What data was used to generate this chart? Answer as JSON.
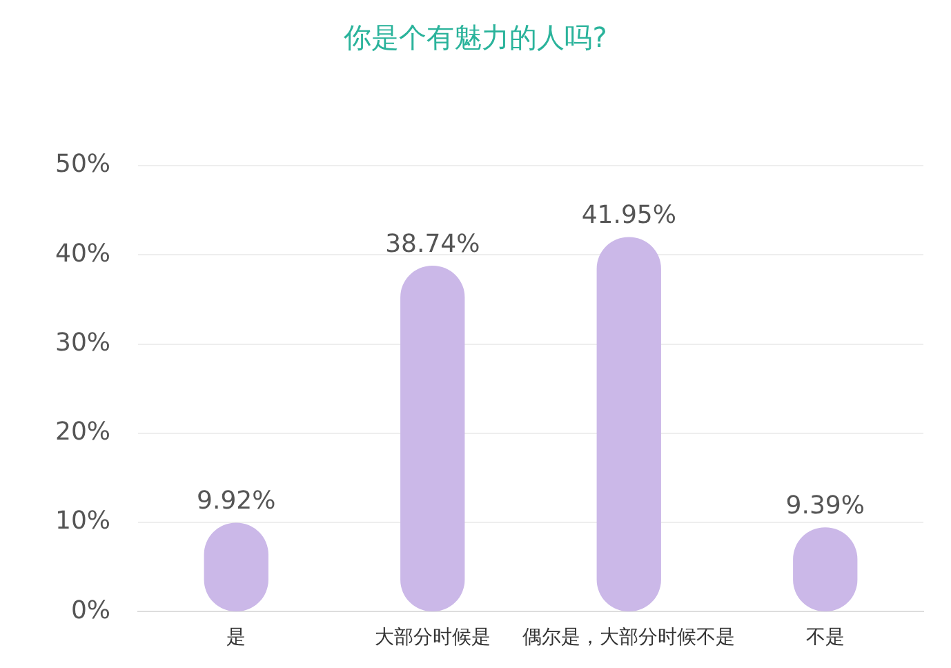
{
  "chart_data": {
    "type": "bar",
    "title": "你是个有魅力的人吗?",
    "categories": [
      "是",
      "大部分时候是",
      "偶尔是，大部分时候不是",
      "不是"
    ],
    "values": [
      9.92,
      38.74,
      41.95,
      9.39
    ],
    "value_labels": [
      "9.92%",
      "38.74%",
      "41.95%",
      "9.39%"
    ],
    "color": "#cbb8e8",
    "ylim": [
      0,
      50
    ],
    "yticks": [
      {
        "value": 0,
        "label": "0%"
      },
      {
        "value": 10,
        "label": "10%"
      },
      {
        "value": 20,
        "label": "20%"
      },
      {
        "value": 30,
        "label": "30%"
      },
      {
        "value": 40,
        "label": "40%"
      },
      {
        "value": 50,
        "label": "50%"
      }
    ],
    "grid": "y"
  }
}
